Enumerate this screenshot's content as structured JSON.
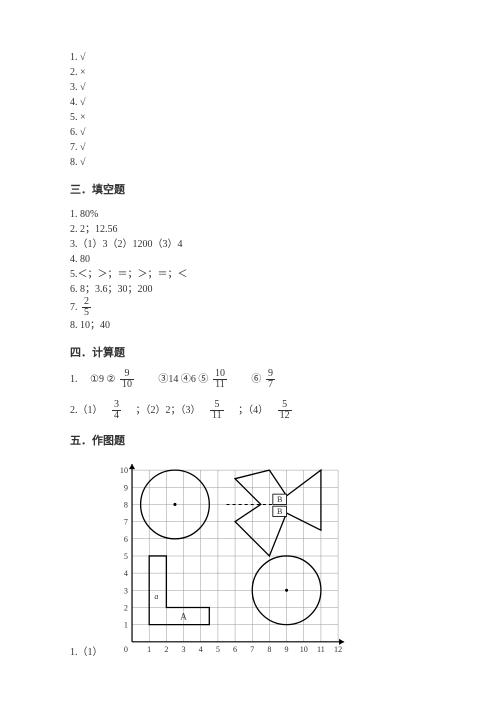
{
  "judgment": {
    "items": [
      {
        "num": "1.",
        "mark": "√"
      },
      {
        "num": "2.",
        "mark": "×"
      },
      {
        "num": "3.",
        "mark": "√"
      },
      {
        "num": "4.",
        "mark": "√"
      },
      {
        "num": "5.",
        "mark": "×"
      },
      {
        "num": "6.",
        "mark": "√"
      },
      {
        "num": "7.",
        "mark": "√"
      },
      {
        "num": "8.",
        "mark": "√"
      }
    ]
  },
  "section3_title": "三．填空题",
  "fill": {
    "a1": "1. 80%",
    "a2": "2. 2；12.56",
    "a3": "3.（1）3（2）1200（3）4",
    "a4": "4. 80",
    "a5": "5.＜；＞；＝；＞；＝；＜",
    "a6": "6. 8；3.6；30；200",
    "a7_prefix": "7.   ",
    "a7_num": "2",
    "a7_den": "5",
    "a8": "8. 10；40"
  },
  "section4_title": "四．计算题",
  "calc1": {
    "prefix": "1. ",
    "p1": "①9 ②",
    "f1n": "9",
    "f1d": "10",
    "p2": "　③14 ④6 ⑤",
    "f2n": "10",
    "f2d": "11",
    "p3": "　⑥",
    "f3n": "9",
    "f3d": "7"
  },
  "calc2": {
    "prefix": "2.（1）　",
    "f1n": "3",
    "f1d": "4",
    "mid1": "　；（2）2；（3）　",
    "f2n": "5",
    "f2d": "11",
    "mid2": "　；（4）　",
    "f3n": "5",
    "f3d": "12"
  },
  "section5_title": "五．作图题",
  "drawing_prefix": "1.（1）",
  "labels": {
    "A": "A",
    "B": "B",
    "a": "a"
  },
  "grid": {
    "cell": 17,
    "cols": 12,
    "rows": 10,
    "stroke": "#999999",
    "axis_stroke": "#000000",
    "bg": "#ffffff",
    "shape_stroke": "#000000",
    "shape_fill": "none",
    "dash": "3,3"
  },
  "colors": {
    "text": "#333333",
    "line": "#000000"
  }
}
